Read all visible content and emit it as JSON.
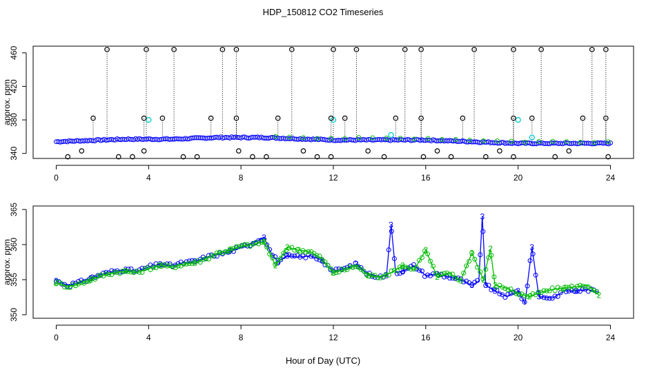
{
  "page": {
    "title": "HDP_150812  CO2 Timeseries",
    "xlabel": "Hour of Day (UTC)"
  },
  "chart_data": [
    {
      "type": "scatter",
      "title": "",
      "xlabel": "",
      "ylabel": "approx. ppm",
      "xlim": [
        -1,
        25
      ],
      "ylim": [
        334,
        468
      ],
      "xticks": [
        0,
        4,
        8,
        12,
        16,
        20,
        24
      ],
      "yticks": [
        340,
        380,
        420,
        460
      ],
      "grid": false,
      "colors": {
        "main": "#0000ff",
        "highlight": "#00cccc",
        "outlier": "#000000",
        "secondary": "#00bb00"
      },
      "series": [
        {
          "values_at": [
            0,
            1,
            2,
            3,
            4,
            5,
            6,
            7,
            8,
            9,
            10,
            11,
            12,
            13,
            14,
            15,
            16,
            17,
            18,
            19,
            20,
            21,
            22,
            23,
            24
          ],
          "values": [
            354,
            355,
            356,
            357,
            357,
            357,
            358,
            359,
            359,
            359,
            358,
            357,
            356,
            356,
            356,
            356,
            356,
            355,
            354,
            353,
            352,
            352,
            352,
            352,
            352
          ]
        }
      ],
      "outliers_high": [
        2.2,
        3.9,
        5.1,
        7.2,
        7.8,
        10.2,
        12.0,
        13.0,
        15.1,
        15.8,
        18.1,
        19.8,
        21.0,
        23.2,
        23.8
      ],
      "outliers_mid": [
        1.6,
        3.8,
        4.6,
        6.7,
        7.8,
        9.6,
        11.9,
        12.5,
        14.7,
        15.8,
        17.6,
        19.8,
        20.6,
        22.8,
        23.8
      ],
      "outliers_low": [
        0.5,
        1.1,
        2.7,
        3.3,
        3.8,
        5.5,
        6.1,
        7.9,
        8.5,
        9.1,
        10.7,
        11.3,
        11.9,
        13.5,
        14.2,
        15.9,
        16.5,
        17.1,
        18.6,
        19.2,
        19.8,
        21.6,
        22.2,
        23.9
      ],
      "highlights": [
        [
          4.0,
          380
        ],
        [
          12.0,
          380
        ],
        [
          20.0,
          380
        ],
        [
          20.6,
          359
        ],
        [
          14.5,
          362
        ]
      ]
    },
    {
      "type": "line",
      "title": "",
      "xlabel": "Hour of Day (UTC)",
      "ylabel": "approx. ppm",
      "xlim": [
        -1,
        25
      ],
      "ylim": [
        349.5,
        365.5
      ],
      "xticks": [
        0,
        4,
        8,
        12,
        16,
        20,
        24
      ],
      "yticks": [
        350,
        355,
        360,
        365
      ],
      "grid": false,
      "series": [
        {
          "marker": "3",
          "color": "#0000ff",
          "x": [
            0,
            0.5,
            1,
            1.5,
            2,
            2.5,
            3,
            3.5,
            4,
            4.5,
            5,
            5.5,
            6,
            6.5,
            7,
            7.5,
            8,
            8.5,
            9,
            9.3,
            9.6,
            10,
            10.5,
            11,
            11.5,
            12,
            12.5,
            13,
            13.5,
            14,
            14.3,
            14.5,
            14.7,
            15,
            15.5,
            16,
            16.5,
            17,
            17.5,
            18,
            18.3,
            18.45,
            18.6,
            19,
            19.5,
            20,
            20.3,
            20.6,
            20.9,
            21.5,
            22,
            22.5,
            23,
            23.5
          ],
          "values": [
            354.8,
            354.2,
            354.6,
            355.2,
            355.8,
            356.2,
            356.4,
            356.2,
            356.8,
            357.2,
            357.0,
            357.4,
            357.6,
            358.2,
            358.6,
            359.0,
            359.6,
            360.2,
            361.0,
            358.8,
            357.6,
            358.4,
            358.2,
            358.4,
            357.8,
            356.2,
            356.6,
            357.2,
            355.8,
            355.4,
            355.6,
            362.8,
            356.0,
            356.2,
            357.0,
            355.6,
            355.8,
            355.4,
            355.0,
            354.2,
            354.8,
            364.0,
            354.2,
            353.4,
            352.6,
            353.4,
            351.6,
            359.6,
            352.6,
            352.4,
            353.4,
            353.4,
            353.6,
            353.2
          ]
        },
        {
          "marker": "2",
          "color": "#00bb00",
          "x": [
            0,
            0.5,
            1,
            1.5,
            2,
            2.5,
            3,
            3.5,
            4,
            4.5,
            5,
            5.5,
            6,
            6.5,
            7,
            7.5,
            8,
            8.5,
            9,
            9.5,
            10,
            10.5,
            11,
            11.5,
            12,
            12.5,
            13,
            13.5,
            14,
            14.5,
            15,
            15.5,
            16,
            16.5,
            17,
            17.5,
            18,
            18.5,
            18.8,
            19,
            19.5,
            20,
            20.5,
            21,
            21.5,
            22,
            22.5,
            23,
            23.5
          ],
          "values": [
            354.6,
            354.0,
            354.4,
            355.0,
            355.6,
            356.0,
            356.2,
            356.0,
            356.6,
            357.0,
            356.8,
            357.2,
            357.4,
            358.0,
            358.8,
            359.2,
            359.8,
            360.0,
            360.4,
            357.0,
            359.6,
            359.2,
            359.0,
            358.0,
            356.0,
            356.4,
            357.0,
            355.6,
            355.4,
            356.0,
            357.0,
            356.4,
            359.2,
            355.4,
            356.0,
            354.8,
            358.8,
            355.0,
            359.4,
            354.2,
            353.8,
            353.0,
            352.6,
            353.2,
            353.6,
            353.8,
            354.0,
            354.2,
            352.8
          ]
        }
      ]
    }
  ]
}
